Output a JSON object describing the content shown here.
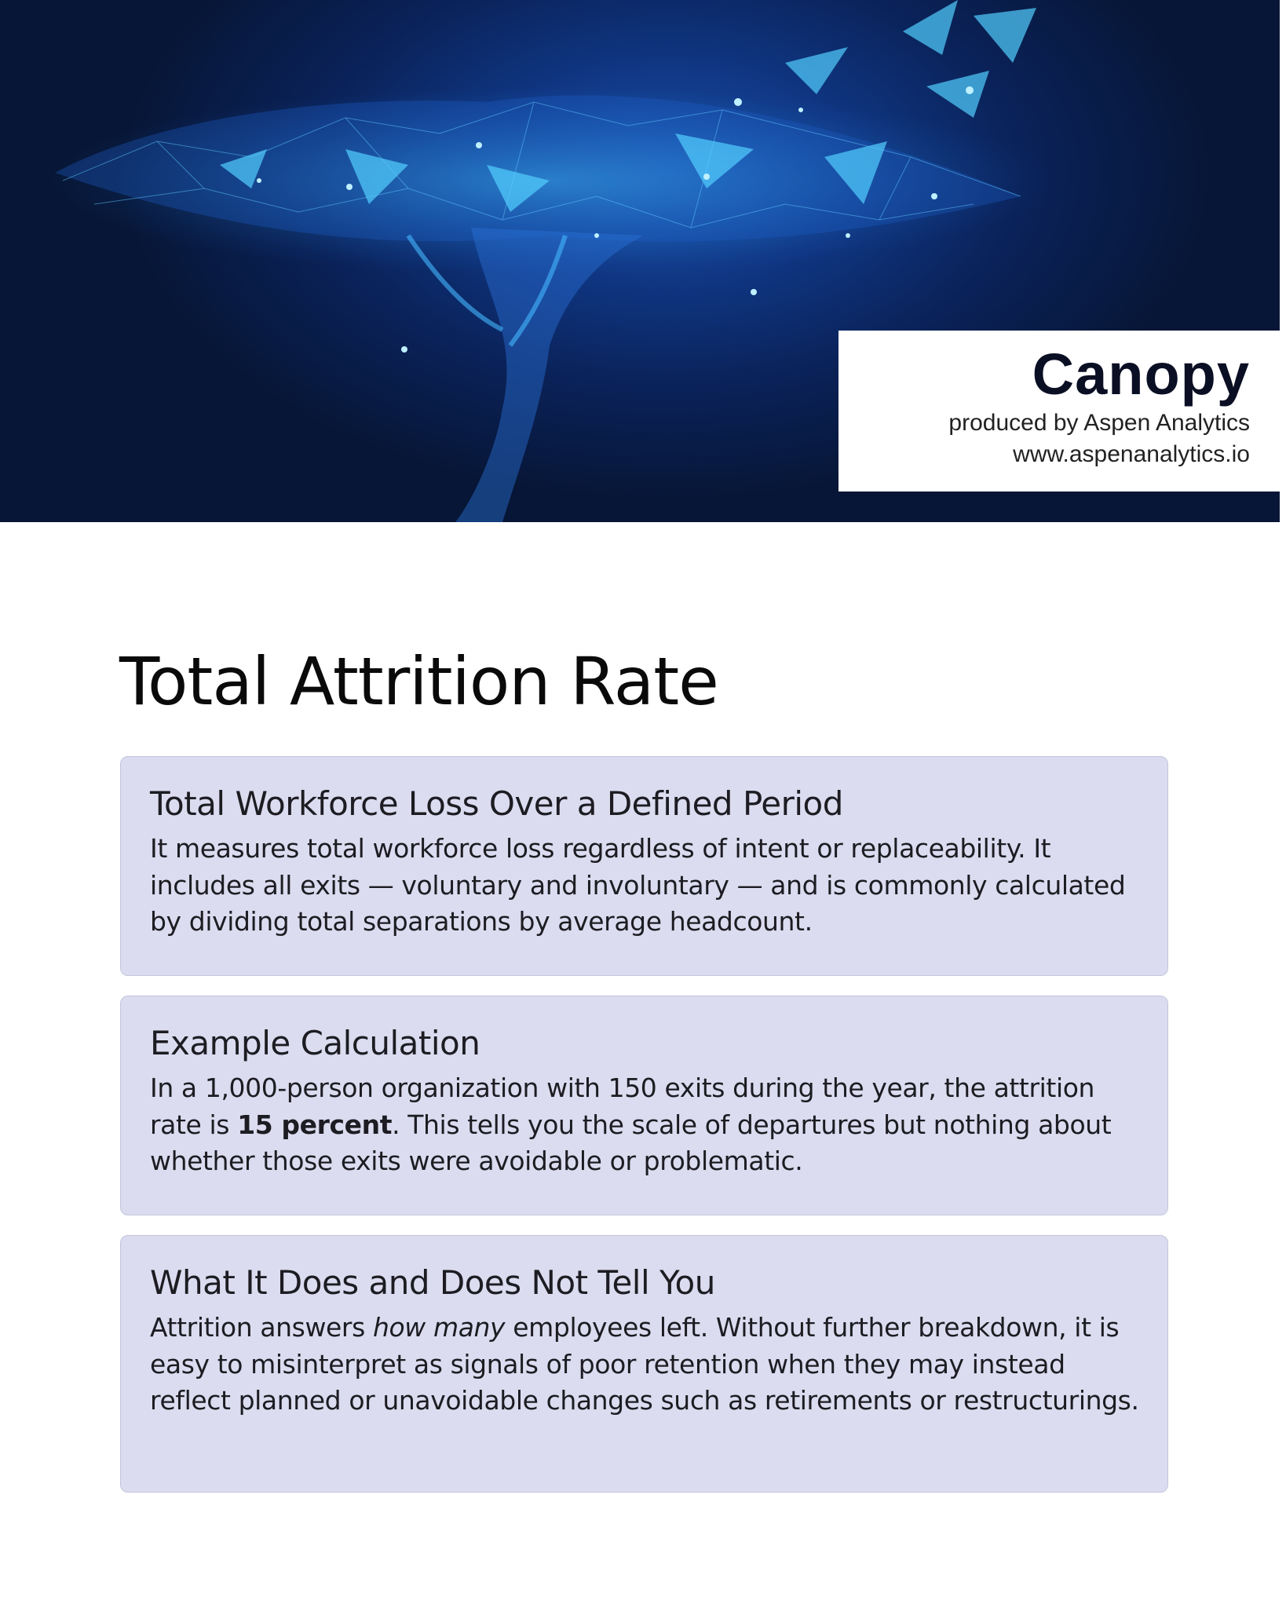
{
  "header": {
    "brand": {
      "title": "Canopy",
      "producer": "produced by Aspen Analytics",
      "website": "www.aspenanalytics.io"
    },
    "image": "network-tree-illustration",
    "colors": {
      "banner_dark": "#071636",
      "banner_glow": "#1a4fa8",
      "accent": "#3fc6ff"
    }
  },
  "page": {
    "title": "Total Attrition Rate"
  },
  "cards": [
    {
      "heading": "Total Workforce Loss Over a Defined Period",
      "body": "It measures total workforce loss regardless of intent or replaceability. It includes all exits — voluntary and involuntary — and is commonly calculated by dividing total separations by average headcount."
    },
    {
      "heading": "Example Calculation",
      "body_before": "In a 1,000-person organization with 150 exits during the year, the attrition rate is ",
      "body_bold": "15 percent",
      "body_after": ". This tells you the scale of departures but nothing about whether those exits were avoidable or problematic."
    },
    {
      "heading": "What It Does and Does Not Tell You",
      "body_before": "Attrition answers ",
      "body_italic": "how many",
      "body_after": " employees left. Without further breakdown, it is easy to misinterpret as signals of poor retention when they may instead reflect planned or unavoidable changes such as retirements or restructurings."
    }
  ],
  "colors": {
    "card_bg": "#dcdcf0",
    "card_border": "#c4c4dc",
    "text": "#1c1c22"
  }
}
